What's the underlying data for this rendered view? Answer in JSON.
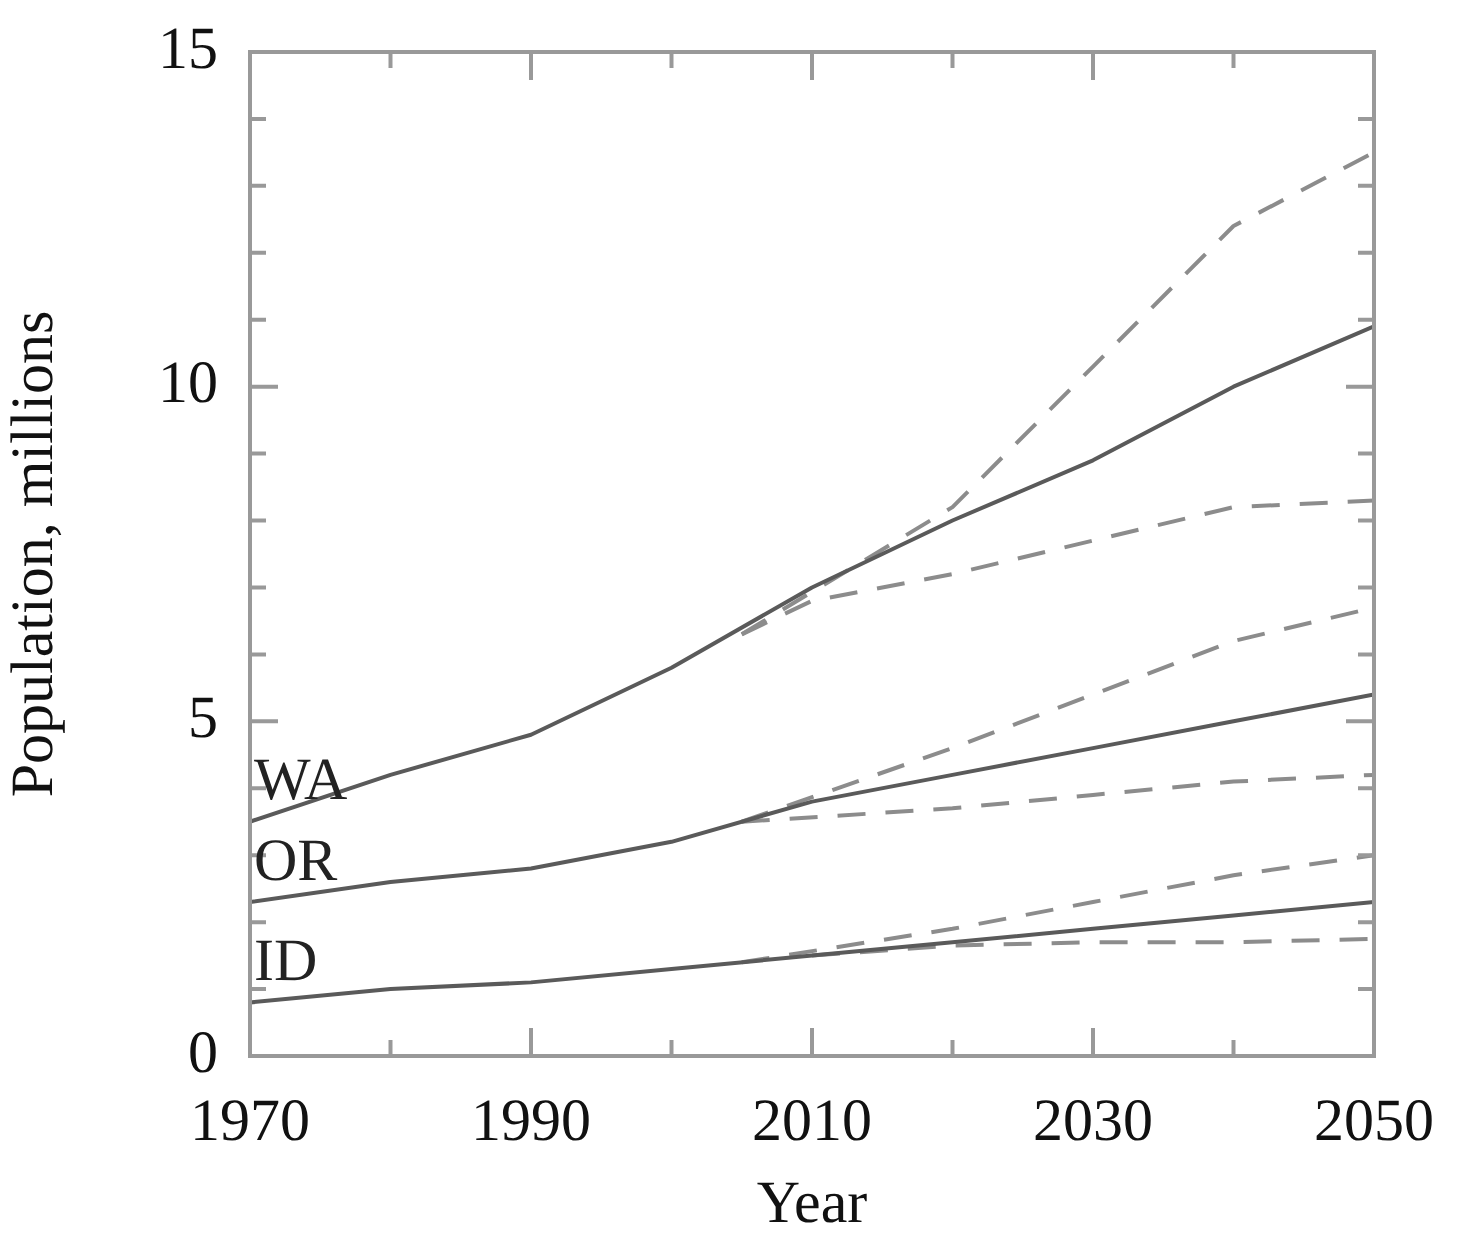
{
  "chart_data": {
    "type": "line",
    "xlabel": "Year",
    "ylabel": "Population, millions",
    "xlim": [
      1970,
      2050
    ],
    "ylim": [
      0,
      15
    ],
    "xticks": [
      1970,
      {
        "value": 1980,
        "label": null
      },
      1990,
      {
        "value": 2000,
        "label": null
      },
      2010,
      {
        "value": 2020,
        "label": null
      },
      2030,
      {
        "value": 2040,
        "label": null
      },
      2050
    ],
    "yticks": [
      0,
      {
        "value": 1,
        "label": null
      },
      {
        "value": 2,
        "label": null
      },
      {
        "value": 3,
        "label": null
      },
      {
        "value": 4,
        "label": null
      },
      5,
      {
        "value": 6,
        "label": null
      },
      {
        "value": 7,
        "label": null
      },
      {
        "value": 8,
        "label": null
      },
      {
        "value": 9,
        "label": null
      },
      10,
      {
        "value": 11,
        "label": null
      },
      {
        "value": 12,
        "label": null
      },
      {
        "value": 13,
        "label": null
      },
      {
        "value": 14,
        "label": null
      },
      15
    ],
    "grid": false,
    "legend": false,
    "marker": "none",
    "series": [
      {
        "name": "WA",
        "color": "#5a5a5a",
        "line_style": "solid",
        "x": [
          1970,
          1980,
          1990,
          2000,
          2010,
          2020,
          2030,
          2040,
          2050
        ],
        "values": [
          3.5,
          4.2,
          4.8,
          5.8,
          7.0,
          8.0,
          8.9,
          10.0,
          10.9
        ]
      },
      {
        "color": "#8c8c8c",
        "line_style": "dashed",
        "x": [
          2005,
          2020,
          2030,
          2040,
          2050
        ],
        "values": [
          6.3,
          8.2,
          10.3,
          12.4,
          13.5
        ]
      },
      {
        "color": "#8c8c8c",
        "line_style": "dashed",
        "x": [
          2005,
          2010,
          2020,
          2030,
          2040,
          2050
        ],
        "values": [
          6.3,
          6.8,
          7.2,
          7.7,
          8.2,
          8.3
        ]
      },
      {
        "name": "OR",
        "color": "#5a5a5a",
        "line_style": "solid",
        "x": [
          1970,
          1980,
          1990,
          2000,
          2010,
          2020,
          2030,
          2040,
          2050
        ],
        "values": [
          2.3,
          2.6,
          2.8,
          3.2,
          3.8,
          4.2,
          4.6,
          5.0,
          5.4
        ]
      },
      {
        "color": "#8c8c8c",
        "line_style": "dashed",
        "x": [
          2005,
          2020,
          2030,
          2040,
          2050
        ],
        "values": [
          3.5,
          4.6,
          5.4,
          6.2,
          6.7
        ]
      },
      {
        "color": "#8c8c8c",
        "line_style": "dashed",
        "x": [
          2005,
          2020,
          2030,
          2040,
          2050
        ],
        "values": [
          3.5,
          3.7,
          3.9,
          4.1,
          4.2
        ]
      },
      {
        "name": "ID",
        "color": "#5a5a5a",
        "line_style": "solid",
        "x": [
          1970,
          1980,
          1990,
          2000,
          2010,
          2020,
          2030,
          2040,
          2050
        ],
        "values": [
          0.8,
          1.0,
          1.1,
          1.3,
          1.5,
          1.7,
          1.9,
          2.1,
          2.3
        ]
      },
      {
        "color": "#8c8c8c",
        "line_style": "dashed",
        "x": [
          2005,
          2020,
          2030,
          2040,
          2050
        ],
        "values": [
          1.4,
          1.9,
          2.3,
          2.7,
          3.0
        ]
      },
      {
        "color": "#8c8c8c",
        "line_style": "dashed",
        "x": [
          2010,
          2020,
          2030,
          2040,
          2050
        ],
        "values": [
          1.5,
          1.65,
          1.7,
          1.7,
          1.75
        ]
      }
    ]
  }
}
